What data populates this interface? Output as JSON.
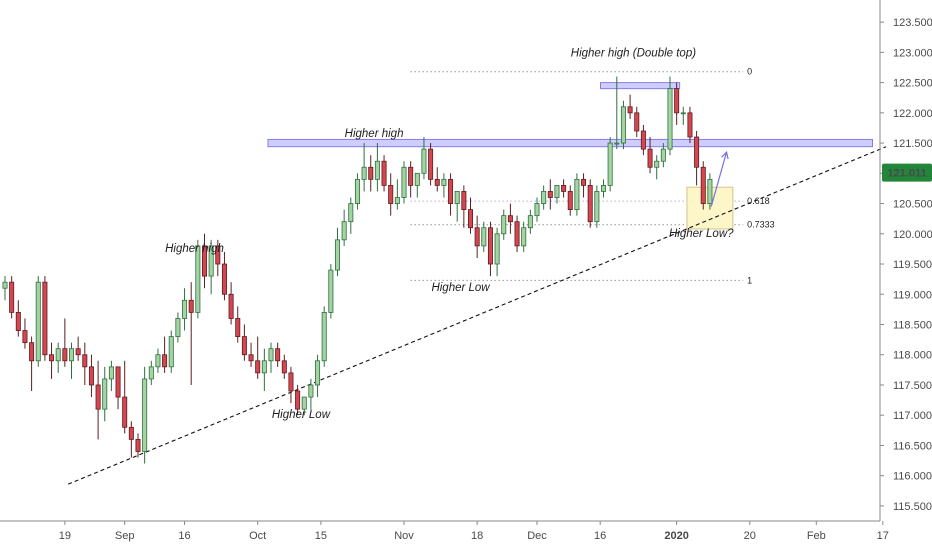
{
  "chart_data": {
    "type": "candlestick",
    "x_ticks": [
      "19",
      "Sep",
      "16",
      "Oct",
      "15",
      "Nov",
      "18",
      "Dec",
      "16",
      "2020",
      "20",
      "Feb",
      "17"
    ],
    "y_ticks": [
      "115.500",
      "116.000",
      "116.500",
      "117.000",
      "117.500",
      "118.000",
      "118.500",
      "119.000",
      "119.500",
      "120.000",
      "120.500",
      "121.000",
      "121.500",
      "122.000",
      "122.500",
      "123.000",
      "123.500"
    ],
    "ylim": [
      115.35,
      123.75
    ],
    "last_price": "121.011",
    "candles": [
      [
        119.1,
        119.3,
        118.9,
        119.2
      ],
      [
        119.2,
        119.3,
        118.6,
        118.7
      ],
      [
        118.7,
        118.9,
        118.3,
        118.4
      ],
      [
        118.4,
        118.6,
        118.1,
        118.2
      ],
      [
        118.2,
        118.3,
        117.4,
        117.9
      ],
      [
        117.9,
        119.3,
        117.8,
        119.2
      ],
      [
        119.2,
        119.3,
        117.9,
        118.0
      ],
      [
        118.0,
        118.2,
        117.6,
        117.9
      ],
      [
        117.9,
        118.2,
        117.7,
        118.1
      ],
      [
        118.1,
        118.6,
        117.8,
        117.9
      ],
      [
        117.9,
        118.2,
        117.6,
        118.1
      ],
      [
        118.1,
        118.3,
        117.9,
        118.0
      ],
      [
        118.0,
        118.2,
        117.5,
        117.8
      ],
      [
        117.8,
        118.0,
        117.3,
        117.5
      ],
      [
        117.5,
        117.9,
        116.6,
        117.1
      ],
      [
        117.1,
        117.8,
        116.9,
        117.6
      ],
      [
        117.6,
        117.9,
        117.4,
        117.8
      ],
      [
        117.8,
        117.8,
        117.1,
        117.3
      ],
      [
        117.3,
        117.9,
        116.7,
        116.8
      ],
      [
        116.8,
        116.9,
        116.3,
        116.6
      ],
      [
        116.6,
        116.7,
        116.3,
        116.4
      ],
      [
        116.4,
        117.8,
        116.2,
        117.6
      ],
      [
        117.6,
        117.9,
        117.5,
        117.8
      ],
      [
        117.8,
        118.1,
        117.7,
        118.0
      ],
      [
        118.0,
        118.3,
        117.7,
        117.8
      ],
      [
        117.8,
        118.4,
        117.7,
        118.3
      ],
      [
        118.3,
        118.7,
        118.2,
        118.6
      ],
      [
        118.6,
        119.1,
        118.4,
        118.9
      ],
      [
        118.9,
        119.2,
        117.5,
        118.7
      ],
      [
        118.7,
        119.9,
        118.6,
        119.8
      ],
      [
        119.8,
        120.0,
        119.1,
        119.3
      ],
      [
        119.3,
        119.9,
        119.0,
        119.8
      ],
      [
        119.8,
        119.9,
        119.3,
        119.5
      ],
      [
        119.5,
        119.7,
        118.9,
        119.0
      ],
      [
        119.0,
        119.2,
        118.5,
        118.6
      ],
      [
        118.6,
        118.8,
        118.2,
        118.3
      ],
      [
        118.3,
        118.5,
        117.9,
        118.0
      ],
      [
        118.0,
        118.2,
        117.8,
        117.9
      ],
      [
        117.9,
        118.3,
        117.6,
        117.7
      ],
      [
        117.7,
        118.1,
        117.4,
        117.9
      ],
      [
        117.9,
        118.2,
        117.7,
        118.1
      ],
      [
        118.1,
        118.2,
        117.8,
        117.9
      ],
      [
        117.9,
        118.0,
        117.6,
        117.7
      ],
      [
        117.7,
        117.8,
        117.2,
        117.4
      ],
      [
        117.4,
        117.5,
        117.0,
        117.1
      ],
      [
        117.1,
        117.3,
        117.0,
        117.3
      ],
      [
        117.3,
        117.6,
        117.1,
        117.5
      ],
      [
        117.5,
        118.0,
        117.3,
        117.9
      ],
      [
        117.9,
        118.8,
        117.8,
        118.7
      ],
      [
        118.7,
        119.5,
        118.6,
        119.4
      ],
      [
        119.4,
        120.1,
        119.3,
        119.9
      ],
      [
        119.9,
        120.4,
        119.8,
        120.2
      ],
      [
        120.2,
        120.6,
        120.0,
        120.5
      ],
      [
        120.5,
        121.0,
        120.4,
        120.9
      ],
      [
        120.9,
        121.5,
        120.7,
        121.1
      ],
      [
        121.1,
        121.3,
        120.7,
        120.9
      ],
      [
        120.9,
        121.5,
        120.7,
        121.2
      ],
      [
        121.2,
        121.3,
        120.7,
        120.8
      ],
      [
        120.8,
        121.0,
        120.3,
        120.5
      ],
      [
        120.5,
        120.9,
        120.4,
        120.6
      ],
      [
        120.6,
        121.2,
        120.5,
        121.1
      ],
      [
        121.1,
        121.2,
        120.6,
        120.8
      ],
      [
        120.8,
        121.0,
        120.6,
        121.0
      ],
      [
        121.0,
        121.6,
        120.9,
        121.4
      ],
      [
        121.4,
        121.5,
        120.8,
        120.9
      ],
      [
        120.9,
        121.1,
        120.7,
        120.8
      ],
      [
        120.8,
        121.0,
        120.6,
        120.9
      ],
      [
        120.9,
        121.0,
        120.3,
        120.5
      ],
      [
        120.5,
        120.7,
        120.2,
        120.7
      ],
      [
        120.7,
        120.8,
        120.1,
        120.4
      ],
      [
        120.4,
        120.6,
        120.0,
        120.1
      ],
      [
        120.1,
        120.3,
        119.6,
        119.8
      ],
      [
        119.8,
        120.2,
        119.7,
        120.1
      ],
      [
        120.1,
        120.2,
        119.3,
        119.5
      ],
      [
        119.5,
        120.1,
        119.3,
        120.0
      ],
      [
        120.0,
        120.4,
        119.9,
        120.3
      ],
      [
        120.3,
        120.5,
        120.0,
        120.2
      ],
      [
        120.2,
        120.3,
        119.7,
        119.8
      ],
      [
        119.8,
        120.2,
        119.7,
        120.1
      ],
      [
        120.1,
        120.4,
        120.0,
        120.3
      ],
      [
        120.3,
        120.6,
        120.2,
        120.5
      ],
      [
        120.5,
        120.8,
        120.4,
        120.7
      ],
      [
        120.7,
        120.9,
        120.4,
        120.6
      ],
      [
        120.6,
        120.8,
        120.5,
        120.8
      ],
      [
        120.8,
        120.9,
        120.6,
        120.7
      ],
      [
        120.7,
        120.8,
        120.3,
        120.4
      ],
      [
        120.4,
        121.0,
        120.3,
        120.9
      ],
      [
        120.9,
        121.0,
        120.6,
        120.8
      ],
      [
        120.8,
        120.9,
        120.1,
        120.2
      ],
      [
        120.2,
        120.8,
        120.1,
        120.7
      ],
      [
        120.7,
        120.9,
        120.6,
        120.8
      ],
      [
        120.8,
        121.6,
        120.7,
        121.5
      ],
      [
        121.5,
        122.6,
        121.4,
        121.5
      ],
      [
        121.5,
        122.2,
        121.4,
        122.1
      ],
      [
        122.1,
        122.3,
        121.9,
        122.0
      ],
      [
        122.0,
        122.1,
        121.6,
        121.7
      ],
      [
        121.7,
        121.8,
        121.3,
        121.4
      ],
      [
        121.4,
        121.6,
        121.0,
        121.1
      ],
      [
        121.1,
        121.3,
        120.9,
        121.2
      ],
      [
        121.2,
        121.5,
        121.1,
        121.4
      ],
      [
        121.4,
        122.6,
        121.3,
        122.4
      ],
      [
        122.4,
        122.5,
        121.8,
        122.0
      ],
      [
        122.0,
        122.1,
        121.8,
        122.0
      ],
      [
        122.0,
        122.1,
        121.5,
        121.6
      ],
      [
        121.6,
        121.7,
        120.8,
        121.1
      ],
      [
        121.1,
        121.2,
        120.4,
        120.5
      ],
      [
        120.5,
        121.0,
        120.4,
        120.9
      ]
    ],
    "fib_levels": [
      {
        "label": "0",
        "value": 122.68,
        "color": "#222222"
      },
      {
        "label": "0.618",
        "value": 120.54,
        "color": "#5b55c9"
      },
      {
        "label": "0.7333",
        "value": 120.15,
        "color": "#222222"
      },
      {
        "label": "1",
        "value": 119.23,
        "color": "#222222"
      }
    ],
    "zones": [
      {
        "from_candle": 90,
        "to_candle": 101,
        "y_low": 122.4,
        "y_high": 122.5
      },
      {
        "from_candle": 40,
        "to_candle": 130,
        "y_low": 121.44,
        "y_high": 121.56
      }
    ],
    "target_box": {
      "from_candle": 103,
      "to_candle": 109,
      "y_low": 120.08,
      "y_high": 120.77
    },
    "trendline": {
      "start": [
        9.5,
        115.86
      ],
      "end": [
        132.5,
        121.44
      ]
    },
    "projection_arrow": {
      "start": [
        106.2,
        120.45
      ],
      "end": [
        108.5,
        121.35
      ]
    },
    "annotations": [
      {
        "text": "Higher high (Double top)",
        "candle": 94.5,
        "y": 122.93
      },
      {
        "text": "Higher high",
        "candle": 55.5,
        "y": 121.6
      },
      {
        "text": "Higher high",
        "candle": 28.5,
        "y": 119.7
      },
      {
        "text": "Higher Low",
        "candle": 68.5,
        "y": 119.05
      },
      {
        "text": "Higher Low",
        "candle": 44.5,
        "y": 116.95
      },
      {
        "text": "Higher Low?",
        "candle": 104.7,
        "y": 119.95
      }
    ],
    "colors": {
      "up": "#53b987",
      "down": "#eb4d5c",
      "up_fill": "#a4d3a4",
      "down_fill": "#d64550",
      "zone": "#c7c5ff",
      "zone_border": "#6e68e0",
      "box": "#fdf6c8",
      "box_border": "#d4c38a",
      "price_tag": "#21863a"
    }
  }
}
